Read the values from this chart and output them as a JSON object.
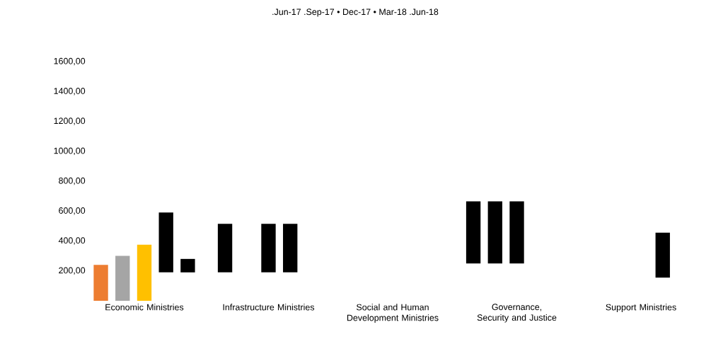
{
  "chart_data": {
    "type": "bar",
    "title": ".Jun-17 .Sep-17 • Dec-17 • Mar-18 .Jun-18",
    "categories": [
      "Economic Ministries",
      "Infrastructure Ministries",
      "Social and Human Development Ministries",
      "Governance, Security and Justice",
      "Support Ministries"
    ],
    "series": [
      {
        "values": [
          240,
          325,
          null,
          415,
          null
        ],
        "base": [
          0,
          190,
          null,
          250,
          null
        ],
        "colors": [
          "#ed7d31",
          "#000000",
          null,
          "#000000",
          null
        ]
      },
      {
        "values": [
          300,
          null,
          null,
          415,
          null
        ],
        "base": [
          0,
          null,
          null,
          250,
          null
        ],
        "colors": [
          "#a5a5a5",
          null,
          null,
          "#000000",
          null
        ]
      },
      {
        "values": [
          375,
          325,
          null,
          415,
          null
        ],
        "base": [
          0,
          190,
          null,
          250,
          null
        ],
        "colors": [
          "#ffc000",
          "#000000",
          null,
          "#000000",
          null
        ]
      },
      {
        "values": [
          400,
          325,
          null,
          null,
          300
        ],
        "base": [
          190,
          190,
          null,
          null,
          155
        ],
        "colors": [
          "#000000",
          "#000000",
          null,
          null,
          "#000000"
        ]
      },
      {
        "values": [
          90,
          null,
          null,
          null,
          null
        ],
        "base": [
          190,
          null,
          null,
          null,
          null
        ],
        "colors": [
          "#000000",
          null,
          null,
          null,
          null
        ]
      }
    ],
    "ylim": [
      0,
      1600
    ],
    "yticks": [
      {
        "value": 200,
        "label": "200,00"
      },
      {
        "value": 400,
        "label": "400,00"
      },
      {
        "value": 600,
        "label": "600,00"
      },
      {
        "value": 800,
        "label": "800,00"
      },
      {
        "value": 1000,
        "label": "1000,00"
      },
      {
        "value": 1200,
        "label": "1200,00"
      },
      {
        "value": 1400,
        "label": "1400,00"
      },
      {
        "value": 1600,
        "label": "1600,00"
      }
    ],
    "grid": false
  }
}
